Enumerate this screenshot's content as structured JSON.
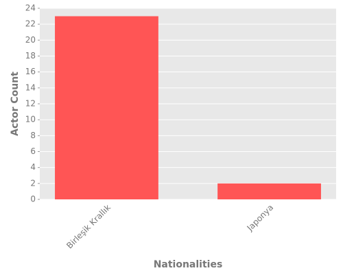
{
  "chart_data": {
    "type": "bar",
    "categories": [
      "Birleşik Krallık",
      "Japonya"
    ],
    "values": [
      23,
      2
    ],
    "color": "#ff5555",
    "xlabel": "Nationalities",
    "ylabel": "Actor Count",
    "ylim": [
      0,
      24
    ],
    "yticks": [
      0,
      2,
      4,
      6,
      8,
      10,
      12,
      14,
      16,
      18,
      20,
      22,
      24
    ],
    "grid": true
  }
}
